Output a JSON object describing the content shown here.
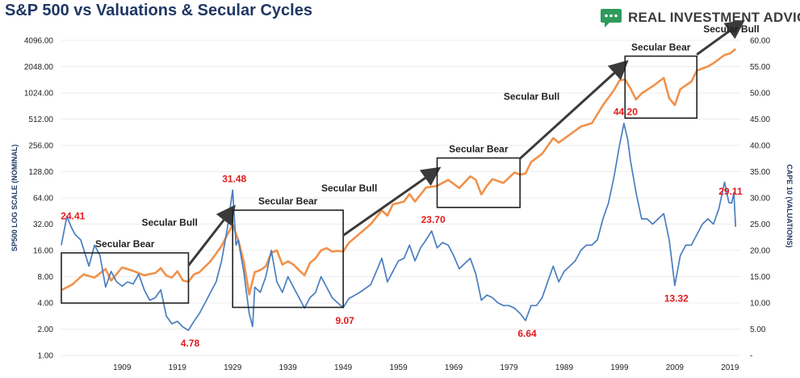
{
  "header": {
    "title": "S&P 500 vs Valuations & Secular Cycles",
    "brand": "REAL INVESTMENT ADVICE"
  },
  "colors": {
    "title": "#1f3864",
    "sp500": "#f0914b",
    "cape": "#4a7dbf",
    "annotation": "#e01b1b",
    "arrow": "#3a3a3a",
    "brand_icon": "#2e9a5c"
  },
  "icons": {
    "brand": "chat-bubble-icon"
  },
  "chart_data": {
    "type": "line",
    "title": "S&P 500 vs Valuations & Secular Cycles",
    "x_ticks": [
      "1909",
      "1919",
      "1929",
      "1939",
      "1949",
      "1959",
      "1969",
      "1979",
      "1989",
      "1999",
      "2009",
      "2019"
    ],
    "xlim": [
      1898,
      2021
    ],
    "y_left": {
      "label": "SP500 LOG SCALE (NOMINAL)",
      "scale": "log2",
      "ticks": [
        "1.00",
        "2.00",
        "4.00",
        "8.00",
        "16.00",
        "32.00",
        "64.00",
        "128.00",
        "256.00",
        "512.00",
        "1024.00",
        "2048.00",
        "4096.00"
      ],
      "range": [
        1,
        4096
      ]
    },
    "y_right": {
      "label": "CAPE 10 (VALUATIONS)",
      "scale": "linear",
      "ticks": [
        "-",
        "5.00",
        "10.00",
        "15.00",
        "20.00",
        "25.00",
        "30.00",
        "35.00",
        "40.00",
        "45.00",
        "50.00",
        "55.00",
        "60.00"
      ],
      "range": [
        0,
        60
      ]
    },
    "series": [
      {
        "axis": "left",
        "points": [
          [
            1898,
            5.6
          ],
          [
            1900,
            6.5
          ],
          [
            1902,
            8.5
          ],
          [
            1904,
            7.8
          ],
          [
            1906,
            9.8
          ],
          [
            1907,
            7.2
          ],
          [
            1909,
            10.2
          ],
          [
            1911,
            9.3
          ],
          [
            1913,
            8.3
          ],
          [
            1915,
            8.8
          ],
          [
            1916,
            10.0
          ],
          [
            1917,
            8.2
          ],
          [
            1918,
            7.8
          ],
          [
            1919,
            9.2
          ],
          [
            1920,
            7.2
          ],
          [
            1921,
            7.0
          ],
          [
            1922,
            8.5
          ],
          [
            1923,
            9.0
          ],
          [
            1925,
            12
          ],
          [
            1927,
            18
          ],
          [
            1928,
            24
          ],
          [
            1929,
            31.5
          ],
          [
            1930,
            21
          ],
          [
            1931,
            12
          ],
          [
            1932,
            5.0
          ],
          [
            1933,
            9
          ],
          [
            1934,
            9.5
          ],
          [
            1935,
            10.5
          ],
          [
            1936,
            15
          ],
          [
            1937,
            16
          ],
          [
            1938,
            11
          ],
          [
            1939,
            12
          ],
          [
            1940,
            11
          ],
          [
            1941,
            9.5
          ],
          [
            1942,
            8.3
          ],
          [
            1943,
            11.5
          ],
          [
            1944,
            13
          ],
          [
            1945,
            16
          ],
          [
            1946,
            17
          ],
          [
            1947,
            15.5
          ],
          [
            1948,
            15.8
          ],
          [
            1949,
            15.5
          ],
          [
            1950,
            19.5
          ],
          [
            1952,
            25
          ],
          [
            1954,
            32
          ],
          [
            1956,
            46
          ],
          [
            1957,
            40
          ],
          [
            1958,
            54
          ],
          [
            1960,
            58
          ],
          [
            1961,
            71
          ],
          [
            1962,
            58
          ],
          [
            1964,
            84
          ],
          [
            1966,
            88
          ],
          [
            1968,
            103
          ],
          [
            1970,
            83
          ],
          [
            1972,
            113
          ],
          [
            1973,
            103
          ],
          [
            1974,
            70
          ],
          [
            1975,
            88
          ],
          [
            1976,
            105
          ],
          [
            1978,
            95
          ],
          [
            1980,
            125
          ],
          [
            1981,
            118
          ],
          [
            1982,
            122
          ],
          [
            1983,
            165
          ],
          [
            1985,
            205
          ],
          [
            1987,
            310
          ],
          [
            1988,
            275
          ],
          [
            1990,
            340
          ],
          [
            1992,
            420
          ],
          [
            1994,
            460
          ],
          [
            1996,
            740
          ],
          [
            1998,
            1100
          ],
          [
            1999,
            1420
          ],
          [
            2000,
            1460
          ],
          [
            2001,
            1150
          ],
          [
            2002,
            860
          ],
          [
            2003,
            1010
          ],
          [
            2005,
            1220
          ],
          [
            2007,
            1520
          ],
          [
            2008,
            890
          ],
          [
            2009,
            740
          ],
          [
            2010,
            1130
          ],
          [
            2012,
            1380
          ],
          [
            2013,
            1840
          ],
          [
            2015,
            2060
          ],
          [
            2016,
            2240
          ],
          [
            2018,
            2790
          ],
          [
            2019,
            2900
          ],
          [
            2020,
            3270
          ]
        ]
      },
      {
        "axis": "right",
        "points": [
          [
            1898,
            21
          ],
          [
            1899,
            26.5
          ],
          [
            1899.8,
            24.41
          ],
          [
            1900.5,
            23
          ],
          [
            1901.5,
            22
          ],
          [
            1903,
            17
          ],
          [
            1904,
            21
          ],
          [
            1905,
            19
          ],
          [
            1906,
            13
          ],
          [
            1907,
            16
          ],
          [
            1908,
            14
          ],
          [
            1909,
            13.2
          ],
          [
            1910,
            14
          ],
          [
            1911,
            13.6
          ],
          [
            1912,
            15.5
          ],
          [
            1913,
            12.5
          ],
          [
            1914,
            10.5
          ],
          [
            1915,
            11
          ],
          [
            1916,
            12.5
          ],
          [
            1917,
            7.5
          ],
          [
            1918,
            6
          ],
          [
            1919,
            6.5
          ],
          [
            1920,
            5.4
          ],
          [
            1921,
            4.78
          ],
          [
            1922,
            6.5
          ],
          [
            1923,
            8
          ],
          [
            1924,
            10
          ],
          [
            1925,
            12
          ],
          [
            1926,
            14
          ],
          [
            1927,
            18
          ],
          [
            1928,
            24
          ],
          [
            1929,
            31.48
          ],
          [
            1929.6,
            21
          ],
          [
            1930,
            22
          ],
          [
            1931,
            16
          ],
          [
            1932,
            8
          ],
          [
            1932.6,
            5.5
          ],
          [
            1933,
            13
          ],
          [
            1934,
            12
          ],
          [
            1935,
            15
          ],
          [
            1936,
            20
          ],
          [
            1937,
            14
          ],
          [
            1938,
            12
          ],
          [
            1939,
            15
          ],
          [
            1940,
            13
          ],
          [
            1941,
            11
          ],
          [
            1942,
            9
          ],
          [
            1943,
            11
          ],
          [
            1944,
            12
          ],
          [
            1945,
            15
          ],
          [
            1946,
            13
          ],
          [
            1947,
            11
          ],
          [
            1948,
            10
          ],
          [
            1949,
            9.07
          ],
          [
            1950,
            10.8
          ],
          [
            1952,
            12
          ],
          [
            1954,
            13.5
          ],
          [
            1955,
            16
          ],
          [
            1956,
            18.5
          ],
          [
            1957,
            14
          ],
          [
            1958,
            16
          ],
          [
            1959,
            18
          ],
          [
            1960,
            18.5
          ],
          [
            1961,
            21
          ],
          [
            1962,
            18
          ],
          [
            1963,
            20.5
          ],
          [
            1964,
            22
          ],
          [
            1965,
            23.7
          ],
          [
            1966,
            20.5
          ],
          [
            1967,
            21.5
          ],
          [
            1968,
            21
          ],
          [
            1969,
            19
          ],
          [
            1970,
            16.5
          ],
          [
            1971,
            17.5
          ],
          [
            1972,
            18.5
          ],
          [
            1973,
            15.5
          ],
          [
            1974,
            10.5
          ],
          [
            1975,
            11.5
          ],
          [
            1976,
            11
          ],
          [
            1977,
            10
          ],
          [
            1978,
            9.5
          ],
          [
            1979,
            9.5
          ],
          [
            1980,
            9
          ],
          [
            1981,
            8
          ],
          [
            1982,
            6.64
          ],
          [
            1983,
            9.5
          ],
          [
            1984,
            9.5
          ],
          [
            1985,
            11
          ],
          [
            1986,
            14
          ],
          [
            1987,
            17
          ],
          [
            1988,
            14
          ],
          [
            1989,
            16
          ],
          [
            1990,
            17
          ],
          [
            1991,
            18
          ],
          [
            1992,
            20
          ],
          [
            1993,
            21
          ],
          [
            1994,
            21
          ],
          [
            1995,
            22
          ],
          [
            1996,
            26
          ],
          [
            1997,
            29
          ],
          [
            1998,
            34
          ],
          [
            1999,
            40
          ],
          [
            1999.8,
            44.2
          ],
          [
            2000.5,
            41
          ],
          [
            2001,
            37
          ],
          [
            2002,
            31
          ],
          [
            2003,
            26
          ],
          [
            2004,
            26
          ],
          [
            2005,
            25
          ],
          [
            2006,
            26
          ],
          [
            2007,
            27
          ],
          [
            2008,
            22
          ],
          [
            2009,
            13.32
          ],
          [
            2010,
            19
          ],
          [
            2011,
            21
          ],
          [
            2012,
            21
          ],
          [
            2013,
            23
          ],
          [
            2014,
            25
          ],
          [
            2015,
            26
          ],
          [
            2016,
            25
          ],
          [
            2017,
            28
          ],
          [
            2018,
            33
          ],
          [
            2018.8,
            29.11
          ],
          [
            2019.3,
            29
          ],
          [
            2019.7,
            31
          ],
          [
            2020,
            24.5
          ]
        ]
      }
    ],
    "phases": [
      {
        "label": "Secular Bear",
        "x0": 1898,
        "x1": 1921
      },
      {
        "label": "Secular Bull",
        "x0": 1921,
        "x1": 1929
      },
      {
        "label": "Secular Bear",
        "x0": 1929,
        "x1": 1949
      },
      {
        "label": "Secular Bull",
        "x0": 1949,
        "x1": 1966
      },
      {
        "label": "Secular Bear",
        "x0": 1966,
        "x1": 1981
      },
      {
        "label": "Secular Bull",
        "x0": 1981,
        "x1": 2000
      },
      {
        "label": "Secular Bear",
        "x0": 2000,
        "x1": 2013
      },
      {
        "label": "Secular Bull",
        "x0": 2013,
        "x1": 2021
      }
    ],
    "cape_annotations": [
      {
        "label": "24.41",
        "x": 1899.8,
        "cape": 24.41
      },
      {
        "label": "4.78",
        "x": 1921,
        "cape": 4.78
      },
      {
        "label": "31.48",
        "x": 1929,
        "cape": 31.48
      },
      {
        "label": "9.07",
        "x": 1949,
        "cape": 9.07
      },
      {
        "label": "23.70",
        "x": 1965,
        "cape": 23.7
      },
      {
        "label": "6.64",
        "x": 1982,
        "cape": 6.64
      },
      {
        "label": "44.20",
        "x": 1999.8,
        "cape": 44.2
      },
      {
        "label": "13.32",
        "x": 2009,
        "cape": 13.32
      },
      {
        "label": "29.11",
        "x": 2018.8,
        "cape": 29.11
      }
    ]
  }
}
